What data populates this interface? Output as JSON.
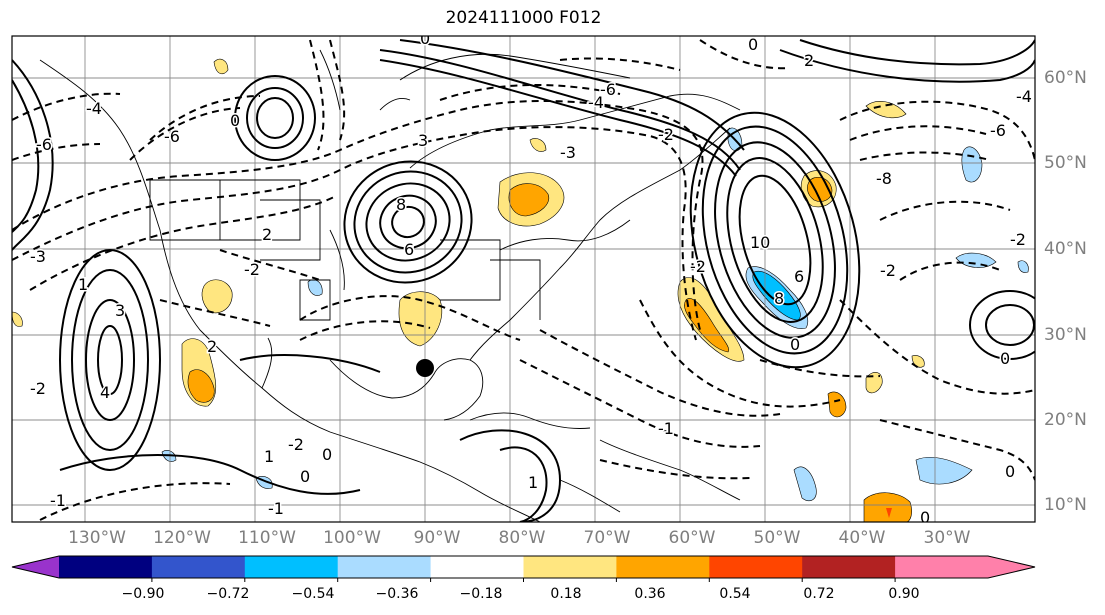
{
  "title": "2024111000 F012",
  "lat_labels": [
    "60°N",
    "50°N",
    "40°N",
    "30°N",
    "20°N",
    "10°N"
  ],
  "lon_labels": [
    "130°W",
    "120°W",
    "110°W",
    "100°W",
    "90°W",
    "80°W",
    "70°W",
    "60°W",
    "50°W",
    "40°W",
    "30°W"
  ],
  "colorbar": {
    "ticks": [
      "−0.90",
      "−0.72",
      "−0.54",
      "−0.36",
      "−0.18",
      "0.18",
      "0.36",
      "0.54",
      "0.72",
      "0.90"
    ],
    "colors": [
      "#9933cc",
      "#000080",
      "#3355cc",
      "#00bfff",
      "#aadcff",
      "#ffffff",
      "#ffe680",
      "#ffa500",
      "#ff4500",
      "#b22222",
      "#ff80aa",
      "#ff80aa"
    ],
    "under_color": "#9933cc",
    "over_color": "#ff80aa"
  },
  "contour_labels": [
    "0",
    "-2",
    "-4",
    "-6",
    "2",
    "4",
    "6",
    "8",
    "10",
    "3",
    "-3",
    "1",
    "-1",
    "-8"
  ],
  "colors": {
    "contour": "#000000",
    "grid": "#808080",
    "coast": "#000000",
    "marker": "#000000"
  }
}
